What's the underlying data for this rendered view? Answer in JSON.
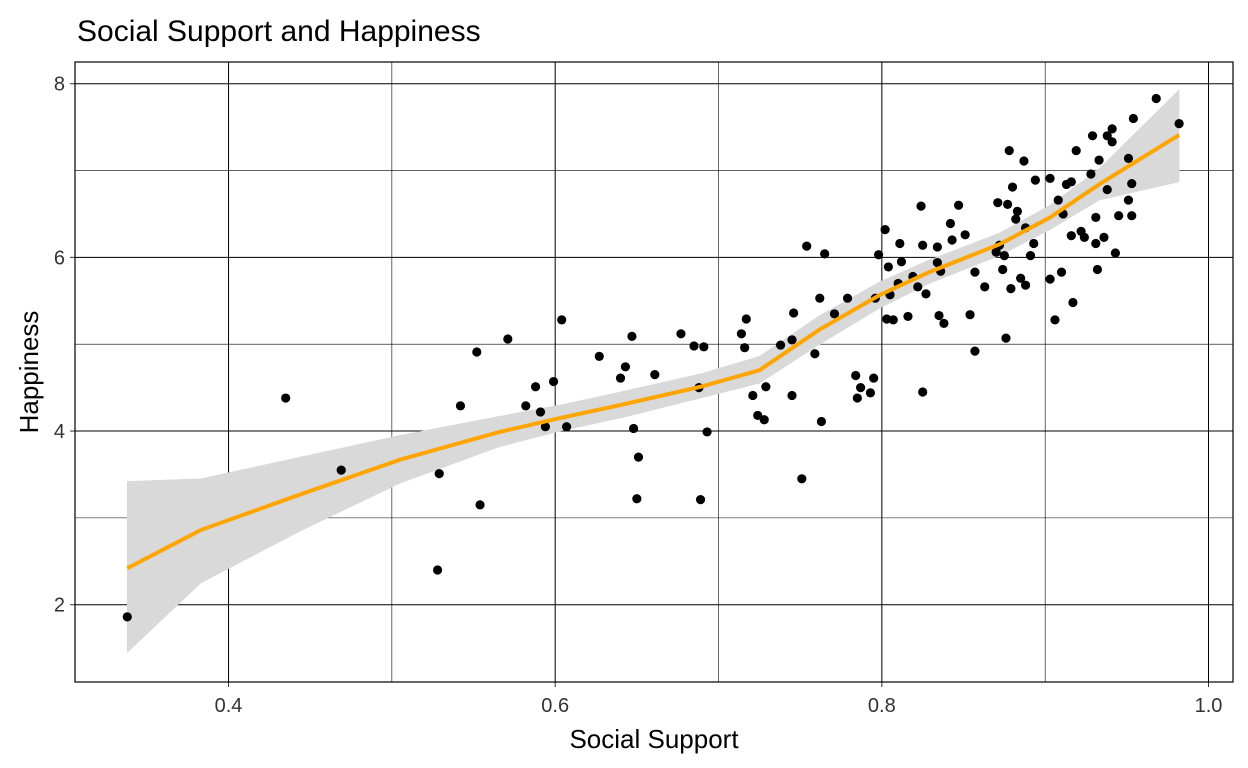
{
  "chart_data": {
    "type": "scatter",
    "title": "Social Support and Happiness",
    "x_label": "Social Support",
    "y_label": "Happiness",
    "xlim": [
      0.306,
      1.015
    ],
    "ylim": [
      1.11,
      8.25
    ],
    "xticks": [
      {
        "value": 0.4,
        "label": "0.4"
      },
      {
        "value": 0.6,
        "label": "0.6"
      },
      {
        "value": 0.8,
        "label": "0.8"
      },
      {
        "value": 1.0,
        "label": "1.0"
      }
    ],
    "yticks": [
      2,
      4,
      6,
      8
    ],
    "xminor": [
      0.5,
      0.7,
      0.9
    ],
    "yminor": [
      3,
      5,
      7
    ],
    "grid": true,
    "color": "#000000",
    "x": [
      0.338,
      0.435,
      0.469,
      0.528,
      0.529,
      0.542,
      0.552,
      0.554,
      0.571,
      0.582,
      0.588,
      0.591,
      0.594,
      0.599,
      0.604,
      0.607,
      0.627,
      0.64,
      0.643,
      0.647,
      0.648,
      0.651,
      0.65,
      0.661,
      0.677,
      0.685,
      0.688,
      0.689,
      0.691,
      0.693,
      0.714,
      0.716,
      0.717,
      0.721,
      0.724,
      0.728,
      0.729,
      0.738,
      0.745,
      0.745,
      0.746,
      0.751,
      0.754,
      0.765,
      0.759,
      0.762,
      0.763,
      0.771,
      0.779,
      0.784,
      0.785,
      0.787,
      0.793,
      0.795,
      0.796,
      0.798,
      0.802,
      0.803,
      0.805,
      0.804,
      0.807,
      0.81,
      0.811,
      0.812,
      0.816,
      0.819,
      0.822,
      0.824,
      0.825,
      0.825,
      0.827,
      0.834,
      0.834,
      0.835,
      0.836,
      0.838,
      0.842,
      0.843,
      0.847,
      0.851,
      0.854,
      0.857,
      0.857,
      0.863,
      0.87,
      0.871,
      0.872,
      0.875,
      0.874,
      0.876,
      0.877,
      0.878,
      0.879,
      0.88,
      0.882,
      0.883,
      0.885,
      0.887,
      0.888,
      0.888,
      0.891,
      0.893,
      0.894,
      0.903,
      0.903,
      0.906,
      0.908,
      0.91,
      0.911,
      0.913,
      0.916,
      0.916,
      0.917,
      0.919,
      0.922,
      0.924,
      0.928,
      0.929,
      0.931,
      0.931,
      0.932,
      0.933,
      0.936,
      0.938,
      0.938,
      0.941,
      0.941,
      0.943,
      0.945,
      0.951,
      0.951,
      0.953,
      0.953,
      0.954,
      0.968,
      0.982
    ],
    "values": [
      1.86,
      4.38,
      3.55,
      2.4,
      3.51,
      4.29,
      4.91,
      3.15,
      5.06,
      4.29,
      4.51,
      4.22,
      4.05,
      4.57,
      5.28,
      4.05,
      4.86,
      4.61,
      4.74,
      5.09,
      4.03,
      3.7,
      3.22,
      4.65,
      5.12,
      4.98,
      4.5,
      3.21,
      4.97,
      3.99,
      5.12,
      4.96,
      5.29,
      4.41,
      4.18,
      4.13,
      4.51,
      4.99,
      5.05,
      4.41,
      5.36,
      3.45,
      6.13,
      6.04,
      4.89,
      5.53,
      4.11,
      5.35,
      5.53,
      4.64,
      4.38,
      4.5,
      4.44,
      4.61,
      5.53,
      6.03,
      6.32,
      5.29,
      5.57,
      5.89,
      5.28,
      5.7,
      6.16,
      5.95,
      5.32,
      5.78,
      5.66,
      6.59,
      6.14,
      4.45,
      5.58,
      5.94,
      6.12,
      5.33,
      5.84,
      5.24,
      6.39,
      6.2,
      6.6,
      6.26,
      5.34,
      5.83,
      4.92,
      5.66,
      6.06,
      6.63,
      6.14,
      6.02,
      5.86,
      5.07,
      6.61,
      7.23,
      5.64,
      6.81,
      6.44,
      6.53,
      5.76,
      7.11,
      6.34,
      5.68,
      6.02,
      6.16,
      6.89,
      6.91,
      5.75,
      5.28,
      6.66,
      5.83,
      6.5,
      6.84,
      6.25,
      6.87,
      5.48,
      7.23,
      6.3,
      6.23,
      6.96,
      7.4,
      6.16,
      6.46,
      5.86,
      7.12,
      6.23,
      6.78,
      7.4,
      7.48,
      7.33,
      6.05,
      6.48,
      7.14,
      6.66,
      6.85,
      6.48,
      7.6,
      7.83,
      7.54
    ],
    "smooth": {
      "color": "#ffa500",
      "band_color": "#d9d9d9",
      "x": [
        0.338,
        0.383,
        0.444,
        0.505,
        0.566,
        0.603,
        0.64,
        0.689,
        0.725,
        0.762,
        0.799,
        0.829,
        0.872,
        0.903,
        0.933,
        0.982
      ],
      "y": [
        2.42,
        2.86,
        3.27,
        3.67,
        3.99,
        4.15,
        4.3,
        4.51,
        4.7,
        5.17,
        5.57,
        5.83,
        6.15,
        6.46,
        6.84,
        7.41
      ],
      "lower": [
        1.45,
        2.25,
        2.85,
        3.4,
        3.82,
        4.0,
        4.15,
        4.38,
        4.55,
        5.0,
        5.42,
        5.7,
        6.02,
        6.32,
        6.66,
        6.87
      ],
      "upper": [
        3.42,
        3.45,
        3.7,
        3.95,
        4.17,
        4.3,
        4.45,
        4.66,
        4.86,
        5.33,
        5.72,
        5.97,
        6.28,
        6.6,
        7.02,
        7.93
      ]
    }
  }
}
